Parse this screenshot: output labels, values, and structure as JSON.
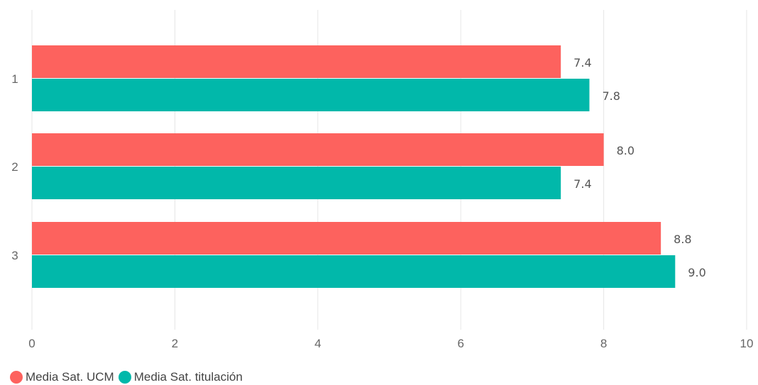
{
  "chart_data": {
    "type": "bar",
    "orientation": "horizontal",
    "categories": [
      "1",
      "2",
      "3"
    ],
    "series": [
      {
        "name": "Media Sat. UCM",
        "values": [
          7.4,
          8.0,
          8.8
        ],
        "color": "#FD625E"
      },
      {
        "name": "Media Sat. titulación",
        "values": [
          7.8,
          7.4,
          9.0
        ],
        "color": "#01B8AA"
      }
    ],
    "x_ticks": [
      "0",
      "2",
      "4",
      "6",
      "8",
      "10"
    ],
    "xlim": [
      0,
      10
    ],
    "grid": true,
    "legend_position": "bottom-left",
    "data_labels": true
  }
}
